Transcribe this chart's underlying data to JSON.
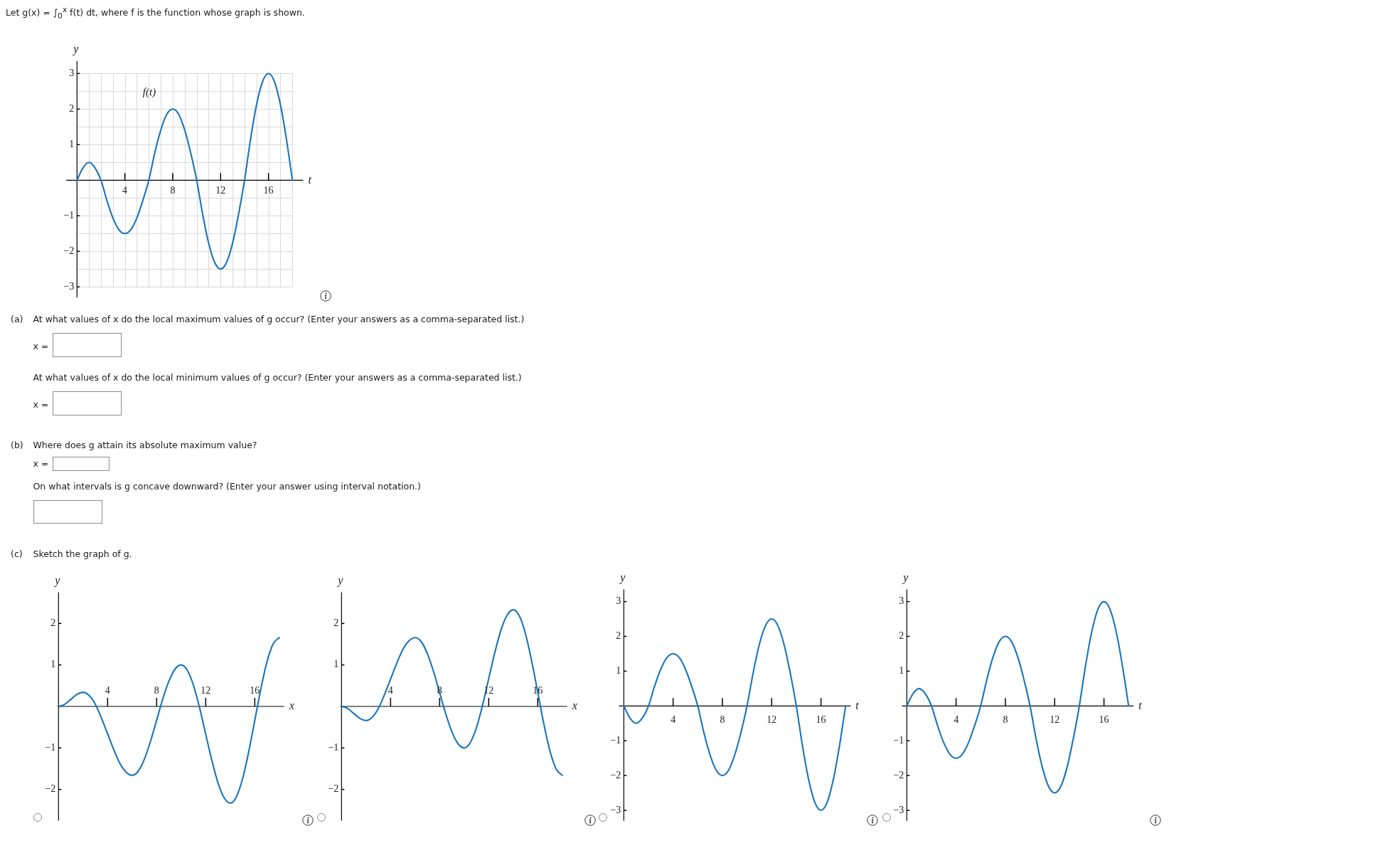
{
  "chart_data": [
    {
      "type": "line",
      "title": "Let g(x) = ∫$_{0}$$^{x}$ f(t) dt, where f is the function whose graph is shown.",
      "xlabel": "t",
      "ylabel": "y",
      "color": "#1a74ba",
      "grid": true,
      "x": [
        0,
        0.5,
        1,
        1.5,
        2,
        2.5,
        3,
        3.5,
        4,
        4.5,
        5,
        5.5,
        6,
        6.5,
        7,
        7.5,
        8,
        8.5,
        9,
        9.5,
        10,
        10.5,
        11,
        11.5,
        12,
        12.5,
        13,
        13.5,
        14,
        14.5,
        15,
        15.5,
        16,
        16.5,
        17,
        17.5,
        18
      ],
      "values": [
        0,
        0.35,
        0.5,
        0.35,
        0,
        -0.57,
        -1.06,
        -1.39,
        -1.5,
        -1.39,
        -1.06,
        -0.57,
        0,
        0.77,
        1.41,
        1.85,
        2,
        1.85,
        1.41,
        0.77,
        0,
        -0.96,
        -1.77,
        -2.31,
        -2.5,
        -2.31,
        -1.77,
        -0.96,
        0,
        1.15,
        2.12,
        2.77,
        3,
        2.77,
        2.12,
        1.15,
        0
      ],
      "xlim": [
        -0.9,
        18.9
      ],
      "ylim": [
        -3.3,
        3.35
      ],
      "xticks": [
        {
          "value": 0,
          "label": null
        },
        {
          "value": 1,
          "label": null
        },
        {
          "value": 2,
          "label": null
        },
        {
          "value": 3,
          "label": null
        },
        4,
        {
          "value": 5,
          "label": null
        },
        {
          "value": 6,
          "label": null
        },
        {
          "value": 7,
          "label": null
        },
        8,
        {
          "value": 9,
          "label": null
        },
        {
          "value": 10,
          "label": null
        },
        {
          "value": 11,
          "label": null
        },
        12,
        {
          "value": 13,
          "label": null
        },
        {
          "value": 14,
          "label": null
        },
        {
          "value": 15,
          "label": null
        },
        16,
        {
          "value": 17,
          "label": null
        },
        {
          "value": 18,
          "label": null
        }
      ],
      "yticks": [
        {
          "value": -3,
          "label": "−3"
        },
        {
          "value": -2.5,
          "label": null
        },
        {
          "value": -2,
          "label": "−2"
        },
        {
          "value": -1.5,
          "label": null
        },
        {
          "value": -1,
          "label": "−1"
        },
        {
          "value": -0.5,
          "label": null
        },
        {
          "value": 0,
          "label": null
        },
        {
          "value": 0.5,
          "label": null
        },
        1,
        {
          "value": 1.5,
          "label": null
        },
        2,
        {
          "value": 2.5,
          "label": null
        },
        3
      ],
      "annotations": [
        "f(t)"
      ]
    },
    {
      "type": "other",
      "annotations": [
        "(a)",
        "At what values of x do the local maximum values of g occur? (Enter your answers as a comma-separated list.)",
        "x =",
        "At what values of x do the local minimum values of g occur? (Enter your answers as a comma-separated list.)",
        "x =",
        "(b)",
        "Where does g attain its absolute maximum value?",
        "x =",
        "On what intervals is g concave downward? (Enter your answer using interval notation.)",
        "(c)",
        "Sketch the graph of g."
      ]
    },
    {
      "type": "line",
      "xlabel": "x",
      "ylabel": "y",
      "color": "#1a74ba",
      "x": [
        0,
        0.5,
        1,
        1.5,
        2,
        2.5,
        3,
        3.5,
        4,
        4.5,
        5,
        5.5,
        6,
        6.5,
        7,
        7.5,
        8,
        8.5,
        9,
        9.5,
        10,
        10.5,
        11,
        11.5,
        12,
        12.5,
        13,
        13.5,
        14,
        14.5,
        15,
        15.5,
        16,
        16.5,
        17,
        17.5,
        18
      ],
      "values": [
        0,
        0.05,
        0.17,
        0.29,
        0.34,
        0.26,
        0.05,
        -0.28,
        -0.66,
        -1.04,
        -1.37,
        -1.58,
        -1.66,
        -1.56,
        -1.27,
        -0.84,
        -0.33,
        0.18,
        0.61,
        0.9,
        1,
        0.87,
        0.51,
        -0.03,
        -0.67,
        -1.3,
        -1.84,
        -2.2,
        -2.33,
        -2.18,
        -1.75,
        -1.1,
        -0.34,
        0.43,
        1.08,
        1.51,
        1.66
      ],
      "xlim": [
        -0.1,
        18.4
      ],
      "ylim": [
        -2.75,
        2.75
      ],
      "xticks": [
        4,
        8,
        12,
        16
      ],
      "yticks": [
        {
          "value": -2,
          "label": "−2"
        },
        {
          "value": -1,
          "label": "−1"
        },
        1,
        2
      ]
    },
    {
      "type": "line",
      "xlabel": "x",
      "ylabel": "y",
      "color": "#1a74ba",
      "x": [
        0,
        0.5,
        1,
        1.5,
        2,
        2.5,
        3,
        3.5,
        4,
        4.5,
        5,
        5.5,
        6,
        6.5,
        7,
        7.5,
        8,
        8.5,
        9,
        9.5,
        10,
        10.5,
        11,
        11.5,
        12,
        12.5,
        13,
        13.5,
        14,
        14.5,
        15,
        15.5,
        16,
        16.5,
        17,
        17.5,
        18
      ],
      "values": [
        0,
        -0.05,
        -0.17,
        -0.29,
        -0.34,
        -0.26,
        -0.05,
        0.28,
        0.66,
        1.04,
        1.37,
        1.58,
        1.66,
        1.56,
        1.27,
        0.84,
        0.33,
        -0.18,
        -0.61,
        -0.9,
        -1,
        -0.87,
        -0.51,
        0.03,
        0.67,
        1.3,
        1.84,
        2.2,
        2.33,
        2.18,
        1.75,
        1.1,
        0.34,
        -0.43,
        -1.08,
        -1.51,
        -1.66
      ],
      "xlim": [
        -0.1,
        18.4
      ],
      "ylim": [
        -2.75,
        2.75
      ],
      "xticks": [
        4,
        8,
        12,
        16
      ],
      "yticks": [
        {
          "value": -2,
          "label": "−2"
        },
        {
          "value": -1,
          "label": "−1"
        },
        1,
        2
      ]
    },
    {
      "type": "line",
      "xlabel": "t",
      "ylabel": "y",
      "color": "#1a74ba",
      "x": [
        0,
        0.5,
        1,
        1.5,
        2,
        2.5,
        3,
        3.5,
        4,
        4.5,
        5,
        5.5,
        6,
        6.5,
        7,
        7.5,
        8,
        8.5,
        9,
        9.5,
        10,
        10.5,
        11,
        11.5,
        12,
        12.5,
        13,
        13.5,
        14,
        14.5,
        15,
        15.5,
        16,
        16.5,
        17,
        17.5,
        18
      ],
      "values": [
        0,
        -0.35,
        -0.5,
        -0.35,
        0,
        0.57,
        1.06,
        1.39,
        1.5,
        1.39,
        1.06,
        0.57,
        0,
        -0.77,
        -1.41,
        -1.85,
        -2,
        -1.85,
        -1.41,
        -0.77,
        0,
        0.96,
        1.77,
        2.31,
        2.5,
        2.31,
        1.77,
        0.96,
        0,
        -1.15,
        -2.12,
        -2.77,
        -3,
        -2.77,
        -2.12,
        -1.15,
        0
      ],
      "xlim": [
        -0.4,
        18.4
      ],
      "ylim": [
        -3.3,
        3.35
      ],
      "xticks": [
        4,
        8,
        12,
        16
      ],
      "yticks": [
        {
          "value": -3,
          "label": "−3"
        },
        {
          "value": -2,
          "label": "−2"
        },
        {
          "value": -1,
          "label": "−1"
        },
        1,
        2,
        3
      ]
    },
    {
      "type": "line",
      "xlabel": "t",
      "ylabel": "y",
      "color": "#1a74ba",
      "x": [
        0,
        0.5,
        1,
        1.5,
        2,
        2.5,
        3,
        3.5,
        4,
        4.5,
        5,
        5.5,
        6,
        6.5,
        7,
        7.5,
        8,
        8.5,
        9,
        9.5,
        10,
        10.5,
        11,
        11.5,
        12,
        12.5,
        13,
        13.5,
        14,
        14.5,
        15,
        15.5,
        16,
        16.5,
        17,
        17.5,
        18
      ],
      "values": [
        0,
        0.35,
        0.5,
        0.35,
        0,
        -0.57,
        -1.06,
        -1.39,
        -1.5,
        -1.39,
        -1.06,
        -0.57,
        0,
        0.77,
        1.41,
        1.85,
        2,
        1.85,
        1.41,
        0.77,
        0,
        -0.96,
        -1.77,
        -2.31,
        -2.5,
        -2.31,
        -1.77,
        -0.96,
        0,
        1.15,
        2.12,
        2.77,
        3,
        2.77,
        2.12,
        1.15,
        0
      ],
      "xlim": [
        -0.4,
        18.4
      ],
      "ylim": [
        -3.3,
        3.35
      ],
      "xticks": [
        4,
        8,
        12,
        16
      ],
      "yticks": [
        {
          "value": -3,
          "label": "−3"
        },
        {
          "value": -2,
          "label": "−2"
        },
        {
          "value": -1,
          "label": "−1"
        },
        1,
        2,
        3
      ]
    }
  ]
}
